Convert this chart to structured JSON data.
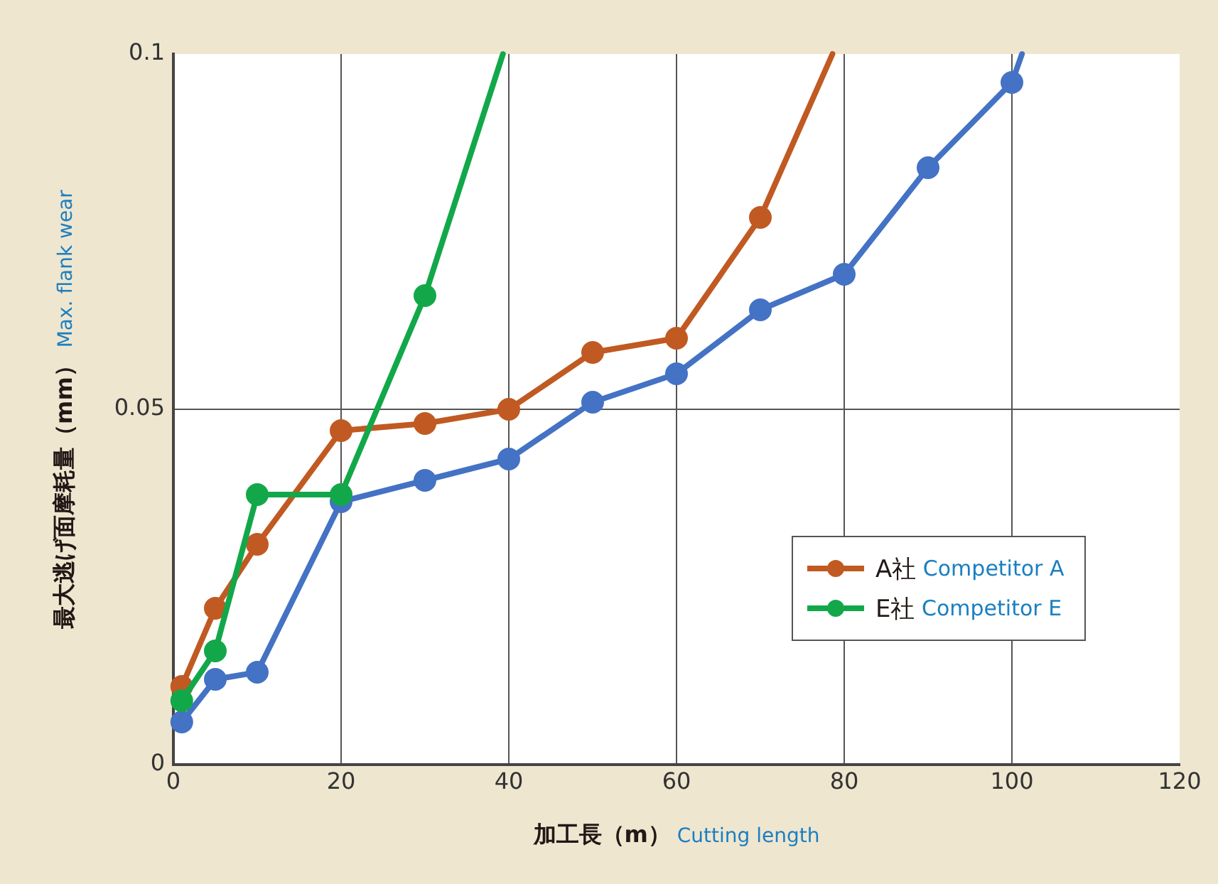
{
  "chart_data": {
    "type": "line",
    "xlabel": "加工長（m）Cutting length",
    "ylabel": "最大逃げ面摩耗量（mm）Max. flank wear",
    "xlim": [
      0,
      120
    ],
    "xticks": [
      0,
      20,
      40,
      60,
      80,
      100,
      120
    ],
    "ylim": [
      0,
      0.1
    ],
    "yticks": [
      0,
      0.05,
      0.1
    ],
    "grid": true,
    "legend": "bottom right",
    "marker": "circle",
    "line_style": "solid",
    "series": [
      {
        "color": "#4472c4",
        "x": [
          1,
          5,
          10,
          20,
          30,
          40,
          50,
          60,
          70,
          80,
          90,
          100,
          101.2
        ],
        "values": [
          0.006,
          0.012,
          0.013,
          0.037,
          0.04,
          0.043,
          0.051,
          0.055,
          0.064,
          0.069,
          0.084,
          0.096,
          0.1
        ]
      },
      {
        "name": "A社 Competitor A",
        "color": "#c05a22",
        "x": [
          1,
          5,
          10,
          20,
          30,
          40,
          50,
          60,
          70,
          78.6
        ],
        "values": [
          0.011,
          0.022,
          0.031,
          0.047,
          0.048,
          0.05,
          0.058,
          0.06,
          0.077,
          0.1
        ]
      },
      {
        "name": "E社 Competitor E",
        "color": "#12a84a",
        "x": [
          1,
          5,
          10,
          20,
          30,
          39.3
        ],
        "values": [
          0.009,
          0.016,
          0.038,
          0.038,
          0.066,
          0.1
        ]
      }
    ]
  }
}
